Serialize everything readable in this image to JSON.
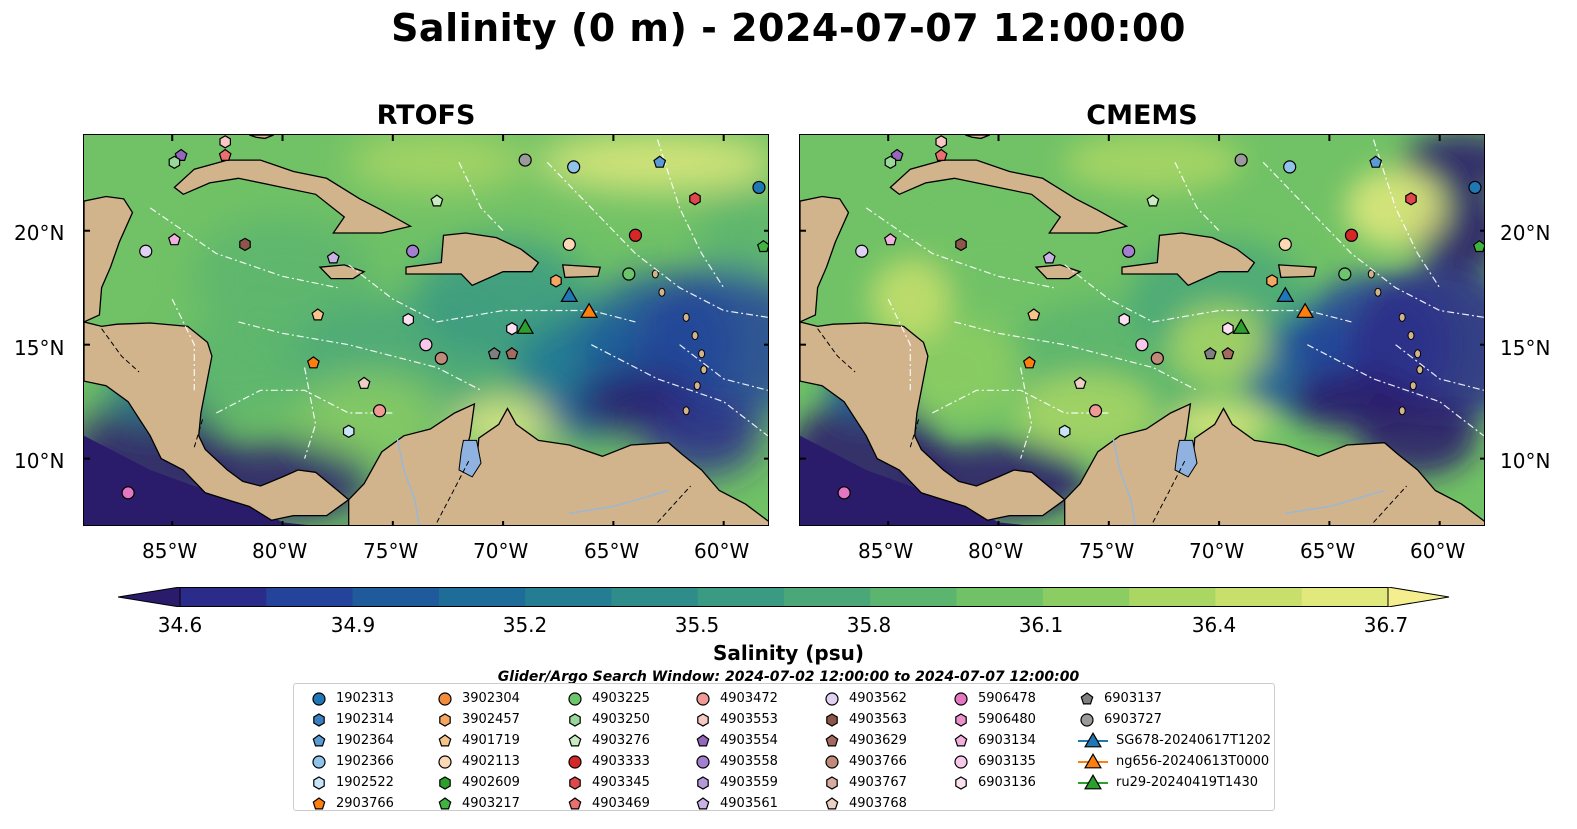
{
  "title": "Salinity (0 m) - 2024-07-07 12:00:00",
  "panels": [
    {
      "title": "RTOFS"
    },
    {
      "title": "CMEMS"
    }
  ],
  "lon_ticks": [
    "85°W",
    "80°W",
    "75°W",
    "70°W",
    "65°W",
    "60°W"
  ],
  "lat_ticks": [
    "20°N",
    "15°N",
    "10°N"
  ],
  "colorbar": {
    "label": "Salinity (psu)",
    "ticks": [
      "34.6",
      "34.9",
      "35.2",
      "35.5",
      "35.8",
      "36.1",
      "36.4",
      "36.7"
    ],
    "colors": [
      "#2a1b6b",
      "#2b2c8a",
      "#23449a",
      "#1f5a9a",
      "#1e6c98",
      "#247d93",
      "#2e8c8b",
      "#3a9a82",
      "#4aa878",
      "#5cb56f",
      "#71c266",
      "#8ccd63",
      "#aad664",
      "#c8df6c",
      "#e2e97c",
      "#f4ee8f"
    ]
  },
  "search_window": "Glider/Argo Search Window: 2024-07-02 12:00:00 to 2024-07-07 12:00:00",
  "legend": {
    "columns": [
      [
        {
          "label": "1902313",
          "marker": "circle",
          "color": "#1f77b4"
        },
        {
          "label": "1902314",
          "marker": "hexagon",
          "color": "#3c7fc0"
        },
        {
          "label": "1902364",
          "marker": "pentagon",
          "color": "#5b9bd5"
        },
        {
          "label": "1902366",
          "marker": "circle",
          "color": "#8fc3ea"
        },
        {
          "label": "1902522",
          "marker": "hexagon",
          "color": "#c8e4f7"
        },
        {
          "label": "2903766",
          "marker": "pentagon",
          "color": "#ff7f0e"
        }
      ],
      [
        {
          "label": "3902304",
          "marker": "circle",
          "color": "#f28c3c"
        },
        {
          "label": "3902457",
          "marker": "hexagon",
          "color": "#f5a660"
        },
        {
          "label": "4901719",
          "marker": "pentagon",
          "color": "#f8c48a"
        },
        {
          "label": "4902113",
          "marker": "circle",
          "color": "#fbd9b4"
        },
        {
          "label": "4902609",
          "marker": "hexagon",
          "color": "#2ca02c"
        },
        {
          "label": "4903217",
          "marker": "pentagon",
          "color": "#3fb43f"
        }
      ],
      [
        {
          "label": "4903225",
          "marker": "circle",
          "color": "#6cc46c"
        },
        {
          "label": "4903250",
          "marker": "hexagon",
          "color": "#98d898"
        },
        {
          "label": "4903276",
          "marker": "pentagon",
          "color": "#c6ecc0"
        },
        {
          "label": "4903333",
          "marker": "circle",
          "color": "#d62728"
        },
        {
          "label": "4903345",
          "marker": "hexagon",
          "color": "#e0474a"
        },
        {
          "label": "4903469",
          "marker": "pentagon",
          "color": "#ec6f6f"
        }
      ],
      [
        {
          "label": "4903472",
          "marker": "circle",
          "color": "#f09a96"
        },
        {
          "label": "4903553",
          "marker": "hexagon",
          "color": "#f7c8c4"
        },
        {
          "label": "4903554",
          "marker": "pentagon",
          "color": "#9467bd"
        },
        {
          "label": "4903558",
          "marker": "circle",
          "color": "#a27fcf"
        },
        {
          "label": "4903559",
          "marker": "hexagon",
          "color": "#b59ad8"
        },
        {
          "label": "4903561",
          "marker": "pentagon",
          "color": "#c9b3e6"
        }
      ],
      [
        {
          "label": "4903562",
          "marker": "circle",
          "color": "#e0d0f2"
        },
        {
          "label": "4903563",
          "marker": "hexagon",
          "color": "#8c564b"
        },
        {
          "label": "4903629",
          "marker": "pentagon",
          "color": "#a46a5e"
        },
        {
          "label": "4903766",
          "marker": "circle",
          "color": "#c08a7a"
        },
        {
          "label": "4903767",
          "marker": "hexagon",
          "color": "#d8ab9c"
        },
        {
          "label": "4903768",
          "marker": "pentagon",
          "color": "#ecd0c4"
        }
      ],
      [
        {
          "label": "5906478",
          "marker": "circle",
          "color": "#e377c2"
        },
        {
          "label": "5906480",
          "marker": "hexagon",
          "color": "#ea92d0"
        },
        {
          "label": "6903134",
          "marker": "pentagon",
          "color": "#f2b0df"
        },
        {
          "label": "6903135",
          "marker": "circle",
          "color": "#f7c8e8"
        },
        {
          "label": "6903136",
          "marker": "hexagon",
          "color": "#fbe0f2"
        }
      ],
      [
        {
          "label": "6903137",
          "marker": "pentagon",
          "color": "#7f7f7f"
        },
        {
          "label": "6903727",
          "marker": "circle",
          "color": "#9a9a9a"
        },
        {
          "label": "SG678-20240617T1202",
          "marker": "triangle",
          "color": "#1f77b4"
        },
        {
          "label": "ng656-20240613T0000",
          "marker": "triangle",
          "color": "#ff7f0e"
        },
        {
          "label": "ru29-20240419T1430",
          "marker": "triangle",
          "color": "#2ca02c"
        }
      ]
    ]
  },
  "observations": [
    {
      "id": "1902313",
      "lon": -58.4,
      "lat": 21.9
    },
    {
      "id": "1902314",
      "lon": -57.7,
      "lat": 23.3
    },
    {
      "id": "1902364",
      "lon": -62.9,
      "lat": 23.0
    },
    {
      "id": "1902366",
      "lon": -66.8,
      "lat": 22.8
    },
    {
      "id": "4903225",
      "lon": -64.3,
      "lat": 18.1
    },
    {
      "id": "4903333",
      "lon": -64.0,
      "lat": 19.8
    },
    {
      "id": "4903345",
      "lon": -61.3,
      "lat": 21.4
    },
    {
      "id": "6903727",
      "lon": -69.0,
      "lat": 23.1
    },
    {
      "id": "4903217",
      "lon": -58.2,
      "lat": 19.3
    },
    {
      "id": "4903554",
      "lon": -84.6,
      "lat": 23.3
    },
    {
      "id": "4903469",
      "lon": -82.6,
      "lat": 23.3
    },
    {
      "id": "4903553",
      "lon": -82.6,
      "lat": 23.9
    },
    {
      "id": "4903250",
      "lon": -84.9,
      "lat": 23.0
    },
    {
      "id": "4903276",
      "lon": -73.0,
      "lat": 21.3
    },
    {
      "id": "4903562",
      "lon": -86.2,
      "lat": 19.1
    },
    {
      "id": "6903134",
      "lon": -84.9,
      "lat": 19.6
    },
    {
      "id": "4903563",
      "lon": -81.7,
      "lat": 19.4
    },
    {
      "id": "4903561",
      "lon": -77.7,
      "lat": 18.8
    },
    {
      "id": "4903558",
      "lon": -74.1,
      "lat": 19.1
    },
    {
      "id": "4902113",
      "lon": -67.0,
      "lat": 19.4
    },
    {
      "id": "3902457",
      "lon": -67.6,
      "lat": 17.8
    },
    {
      "id": "4901719",
      "lon": -78.4,
      "lat": 16.3
    },
    {
      "id": "2903766",
      "lon": -78.6,
      "lat": 14.2
    },
    {
      "id": "6903136",
      "lon": -74.3,
      "lat": 16.1
    },
    {
      "id": "6903135",
      "lon": -73.5,
      "lat": 15.0
    },
    {
      "id": "4903766",
      "lon": -72.8,
      "lat": 14.4
    },
    {
      "id": "6903137",
      "lon": -70.4,
      "lat": 14.6
    },
    {
      "id": "4903629",
      "lon": -69.6,
      "lat": 14.6
    },
    {
      "id": "6903136b",
      "lon": -69.6,
      "lat": 15.7
    },
    {
      "id": "4903768",
      "lon": -76.3,
      "lat": 13.3
    },
    {
      "id": "4903472",
      "lon": -75.6,
      "lat": 12.1
    },
    {
      "id": "1902522",
      "lon": -77.0,
      "lat": 11.2
    },
    {
      "id": "5906478",
      "lon": -87.0,
      "lat": 8.5
    },
    {
      "id": "SG678-20240617T1202",
      "lon": -67.0,
      "lat": 17.2
    },
    {
      "id": "ng656-20240613T0000",
      "lon": -66.1,
      "lat": 16.5
    },
    {
      "id": "ru29-20240419T1430",
      "lon": -69.0,
      "lat": 15.8
    }
  ]
}
